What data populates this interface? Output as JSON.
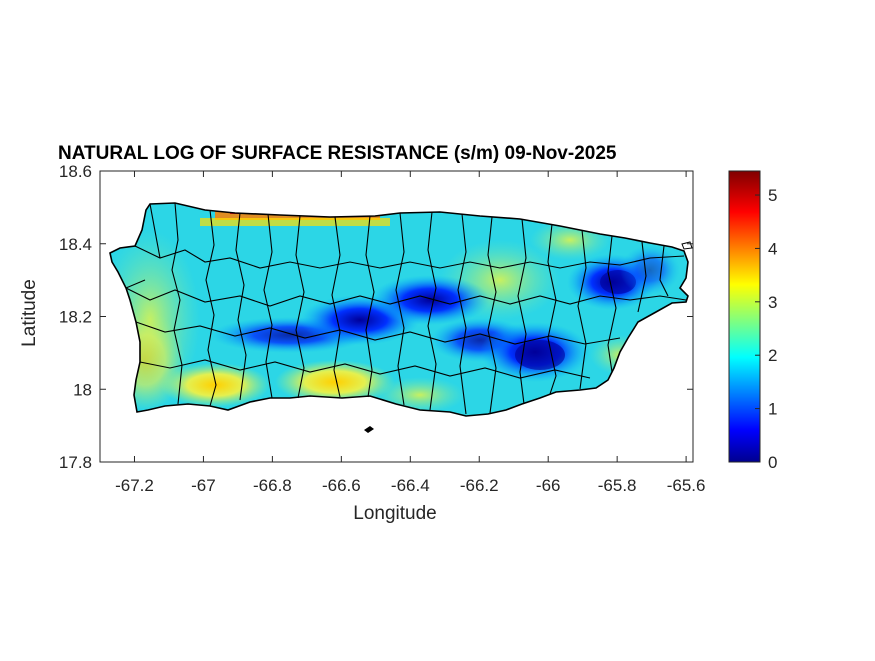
{
  "title": "NATURAL LOG OF SURFACE RESISTANCE (s/m) 09-Nov-2025",
  "x_axis": {
    "label": "Longitude",
    "range": [
      -67.3,
      -65.58
    ],
    "ticks": [
      -67.2,
      -67,
      -66.8,
      -66.6,
      -66.4,
      -66.2,
      -66,
      -65.8,
      -65.6
    ],
    "tick_labels": [
      "-67.2",
      "-67",
      "-66.8",
      "-66.6",
      "-66.4",
      "-66.2",
      "-66",
      "-65.8",
      "-65.6"
    ]
  },
  "y_axis": {
    "label": "Latitude",
    "range": [
      17.8,
      18.6
    ],
    "ticks": [
      17.8,
      18,
      18.2,
      18.4,
      18.6
    ],
    "tick_labels": [
      "17.8",
      "18",
      "18.2",
      "18.4",
      "18.6"
    ]
  },
  "colorbar": {
    "range": [
      0,
      5.45
    ],
    "ticks": [
      0,
      1,
      2,
      3,
      4,
      5
    ],
    "tick_labels": [
      "0",
      "1",
      "2",
      "3",
      "4",
      "5"
    ],
    "colormap": "jet"
  },
  "map_features": {
    "region": "Puerto Rico municipalities",
    "low_resistance_zones": [
      "central cordillera",
      "El Yunque (northeast)"
    ],
    "high_resistance_zones": [
      "north coast strip",
      "south coast"
    ]
  }
}
